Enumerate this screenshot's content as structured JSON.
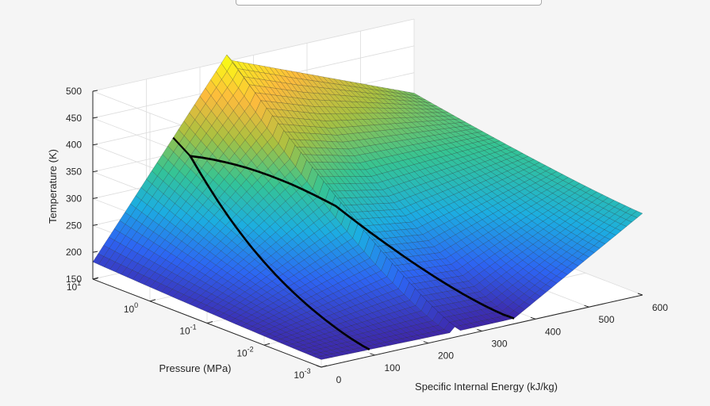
{
  "chart_data": {
    "type": "surface",
    "title": "",
    "xlabel": "Specific Internal Energy (kJ/kg)",
    "ylabel": "Pressure (MPa)",
    "zlabel": "Temperature (K)",
    "x_ticks": [
      "0",
      "100",
      "200",
      "300",
      "400",
      "500",
      "600"
    ],
    "y_ticks": [
      {
        "base": "10",
        "exp": "-3"
      },
      {
        "base": "10",
        "exp": "-2"
      },
      {
        "base": "10",
        "exp": "-1"
      },
      {
        "base": "10",
        "exp": "0"
      },
      {
        "base": "10",
        "exp": "1"
      }
    ],
    "z_ticks": [
      "150",
      "200",
      "250",
      "300",
      "350",
      "400",
      "450",
      "500"
    ],
    "xlim": [
      0,
      600
    ],
    "ylim_log10": [
      -3,
      1
    ],
    "zlim": [
      150,
      500
    ],
    "y_scale": "log",
    "colormap": [
      "#3e26a8",
      "#2d64f3",
      "#1caee1",
      "#35c493",
      "#a9c040",
      "#fcbb3d",
      "#f9fb15"
    ],
    "grid": "on",
    "surface_corners": [
      {
        "u": 0,
        "logp": 1,
        "t": 182
      },
      {
        "u": 0,
        "logp": -3,
        "t": 164
      },
      {
        "u": 360,
        "logp": -3,
        "t": 160
      },
      {
        "u": 600,
        "logp": -3,
        "t": 302
      },
      {
        "u": 600,
        "logp": 1,
        "t": 362
      },
      {
        "u": 245,
        "logp": 1,
        "t": 505
      }
    ],
    "saturation_dome_peak": {
      "u": 150,
      "logp": 0.7,
      "t": 416
    }
  }
}
